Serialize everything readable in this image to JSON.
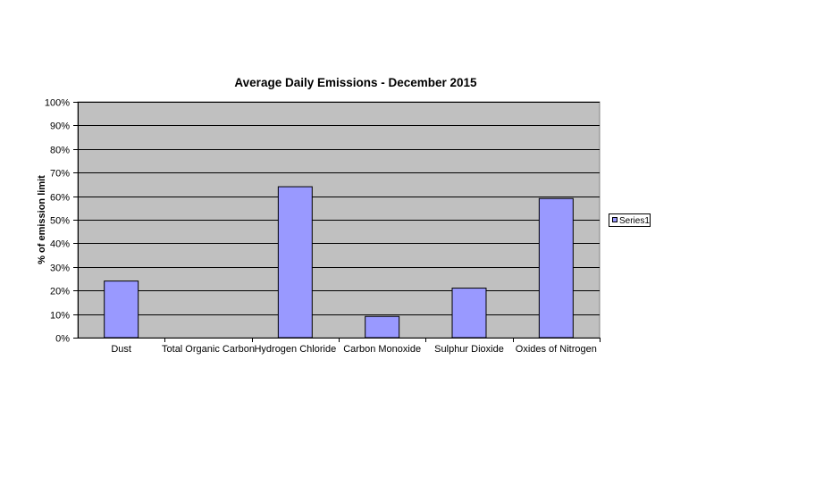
{
  "chart_data": {
    "type": "bar",
    "title": "Average Daily Emissions - December 2015",
    "xlabel": "",
    "ylabel": "% of emission limit",
    "categories": [
      "Dust",
      "Total Organic Carbon",
      "Hydrogen Chloride",
      "Carbon Monoxide",
      "Sulphur Dioxide",
      "Oxides of Nitrogen"
    ],
    "series": [
      {
        "name": "Series1",
        "values": [
          24,
          0,
          64,
          9,
          21,
          59
        ],
        "color": "#9999ff"
      }
    ],
    "ylim": [
      0,
      100
    ],
    "yticks": [
      0,
      10,
      20,
      30,
      40,
      50,
      60,
      70,
      80,
      90,
      100
    ],
    "ytick_labels": [
      "0%",
      "10%",
      "20%",
      "30%",
      "40%",
      "50%",
      "60%",
      "70%",
      "80%",
      "90%",
      "100%"
    ],
    "plot_background": "#c0c0c0",
    "grid": true,
    "legend_position": "right"
  }
}
